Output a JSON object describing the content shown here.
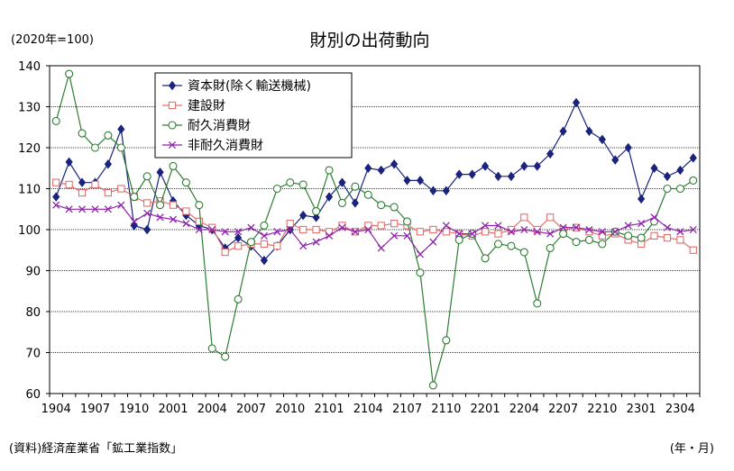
{
  "chart_data": {
    "type": "line",
    "title": "財別の出荷動向",
    "ylabel": "(2020年=100)",
    "source": "(資料)経済産業省「鉱工業指数」",
    "xunit": "(年・月)",
    "ylim": [
      60,
      140
    ],
    "yticks": [
      60,
      70,
      80,
      90,
      100,
      110,
      120,
      130,
      140
    ],
    "grid": true,
    "legend_position": "top-left",
    "xtick_labels": [
      "1904",
      "1907",
      "1910",
      "2001",
      "2004",
      "2007",
      "2010",
      "2101",
      "2104",
      "2107",
      "2110",
      "2201",
      "2204",
      "2207",
      "2210",
      "2301",
      "2304"
    ],
    "x": [
      "1904",
      "1905",
      "1906",
      "1907",
      "1908",
      "1909",
      "1910",
      "1911",
      "1912",
      "2001",
      "2002",
      "2003",
      "2004",
      "2005",
      "2006",
      "2007",
      "2008",
      "2009",
      "2010",
      "2011",
      "2012",
      "2101",
      "2102",
      "2103",
      "2104",
      "2105",
      "2106",
      "2107",
      "2108",
      "2109",
      "2110",
      "2111",
      "2112",
      "2201",
      "2202",
      "2203",
      "2204",
      "2205",
      "2206",
      "2207",
      "2208",
      "2209",
      "2210",
      "2211",
      "2212",
      "2301",
      "2302",
      "2303",
      "2304",
      "2305"
    ],
    "series": [
      {
        "name": "資本財(除く輸送機械)",
        "color": "#1a237e",
        "marker": "diamond",
        "values": [
          108,
          116.5,
          111.5,
          111.5,
          116,
          124.5,
          101,
          100,
          114,
          107,
          103.5,
          101,
          100,
          95.5,
          98,
          96,
          92.5,
          96,
          100,
          103.5,
          103,
          108,
          111.5,
          106.5,
          115,
          114.5,
          116,
          112,
          112,
          109.5,
          109.5,
          113.5,
          113.5,
          115.5,
          113,
          113,
          115.5,
          115.5,
          118.5,
          124,
          131,
          124,
          122,
          117,
          120,
          107.5,
          115,
          113,
          114.5,
          117.5
        ]
      },
      {
        "name": "建設財",
        "color": "#e0706e",
        "marker": "square",
        "values": [
          111.5,
          111,
          109,
          111,
          109,
          110,
          108,
          106.5,
          107,
          106,
          104.5,
          102,
          100.5,
          94.5,
          96,
          96.5,
          96.5,
          96,
          101.5,
          100,
          100,
          99.5,
          101,
          99.5,
          101,
          101,
          101.5,
          101,
          99.5,
          100,
          99.5,
          99,
          98.5,
          99.5,
          99,
          100,
          103,
          100,
          103,
          100,
          100.5,
          99.5,
          98.5,
          99,
          97.5,
          96.5,
          98.5,
          98,
          97.5,
          95
        ]
      },
      {
        "name": "耐久消費財",
        "color": "#2e7d32",
        "marker": "circle",
        "values": [
          126.5,
          138,
          123.5,
          120,
          123,
          120,
          108,
          113,
          106,
          115.5,
          111.5,
          106,
          71,
          69,
          83,
          97,
          101,
          110,
          111.5,
          111,
          104.5,
          114.5,
          106.5,
          110.5,
          108.5,
          106,
          105.5,
          102,
          89.5,
          62,
          73,
          97.5,
          99,
          93,
          96.5,
          96,
          94.5,
          82,
          95.5,
          99,
          97,
          97.5,
          96.5,
          99.5,
          98.5,
          98,
          102,
          110,
          110,
          112
        ]
      },
      {
        "name": "非耐久消費財",
        "color": "#8e24aa",
        "marker": "x",
        "values": [
          106,
          105,
          105,
          105,
          105,
          106,
          102,
          104,
          103,
          102.5,
          101.5,
          100,
          100,
          99.5,
          99.5,
          100.5,
          98.5,
          99.5,
          100,
          96,
          97,
          98.5,
          100.5,
          99.5,
          100,
          95.5,
          98.5,
          98.5,
          94,
          97,
          101,
          99,
          99,
          101,
          101,
          99.5,
          100,
          99.5,
          99,
          100.5,
          100.5,
          100,
          99.5,
          99.5,
          101,
          101.5,
          103,
          100.5,
          99.5,
          100
        ]
      }
    ]
  }
}
